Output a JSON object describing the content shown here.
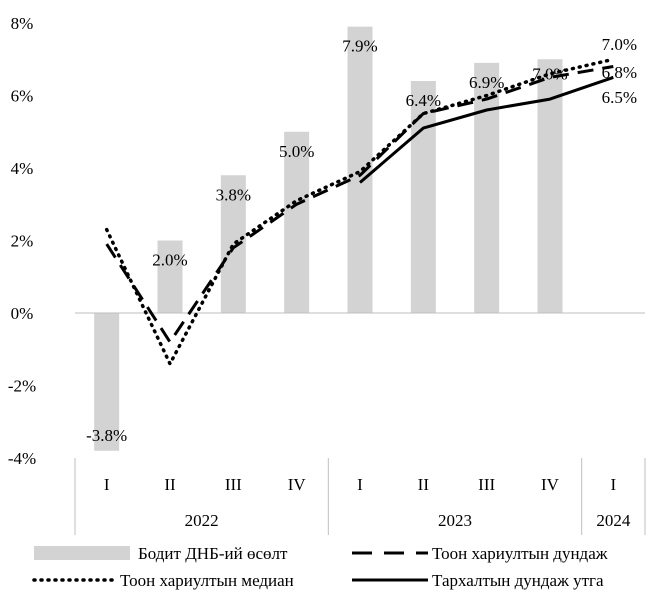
{
  "chart_data": {
    "type": "bar",
    "y_axis": {
      "min": -4,
      "max": 8,
      "ticks": [
        -4,
        -2,
        0,
        2,
        4,
        6,
        8
      ],
      "tick_labels": [
        "-4%",
        "-2%",
        "0%",
        "2%",
        "4%",
        "6%",
        "8%"
      ]
    },
    "categories": [
      "I",
      "II",
      "III",
      "IV",
      "I",
      "II",
      "III",
      "IV",
      "I"
    ],
    "year_groups": [
      {
        "label": "2022",
        "start": 0,
        "end": 3
      },
      {
        "label": "2023",
        "start": 4,
        "end": 7
      },
      {
        "label": "2024",
        "start": 8,
        "end": 8
      }
    ],
    "series": [
      {
        "name": "Бодит ДНБ-ий өсөлт",
        "kind": "bar",
        "color": "#d3d3d3",
        "values": [
          -3.8,
          2.0,
          3.8,
          5.0,
          7.9,
          6.4,
          6.9,
          7.0,
          null
        ],
        "data_labels": [
          "-3.8%",
          "2.0%",
          "3.8%",
          "5.0%",
          "7.9%",
          "6.4%",
          "6.9%",
          "7.0%",
          ""
        ]
      },
      {
        "name": "Тоон хариултын дундаж",
        "kind": "line",
        "style": "dashed",
        "color": "#000000",
        "x": [
          0,
          1,
          2,
          3,
          4,
          5,
          6,
          7,
          8
        ],
        "values": [
          1.9,
          -0.8,
          1.8,
          3.0,
          3.8,
          5.5,
          5.9,
          6.5,
          6.8
        ]
      },
      {
        "name": "Тоон хариултын медиан",
        "kind": "line",
        "style": "dotted",
        "color": "#000000",
        "x": [
          0,
          1,
          2,
          3,
          4,
          5,
          6,
          7,
          8
        ],
        "values": [
          2.3,
          -1.4,
          1.9,
          3.1,
          3.9,
          5.5,
          6.0,
          6.6,
          7.0
        ]
      },
      {
        "name": "Тархалтын дундаж утга",
        "kind": "line",
        "style": "solid",
        "color": "#000000",
        "x": [
          4,
          5,
          6,
          7,
          8
        ],
        "values": [
          3.6,
          5.1,
          5.6,
          5.9,
          6.5
        ]
      }
    ],
    "end_labels": [
      "7.0%",
      "6.8%",
      "6.5%"
    ],
    "legend": {
      "position": "bottom",
      "items": [
        {
          "label": "Бодит ДНБ-ий өсөлт",
          "swatch": "bar"
        },
        {
          "label": "Тоон хариултын дундаж",
          "swatch": "dashed"
        },
        {
          "label": "Тоон хариултын медиан",
          "swatch": "dotted"
        },
        {
          "label": "Тархалтын дундаж утга",
          "swatch": "solid"
        }
      ]
    }
  }
}
